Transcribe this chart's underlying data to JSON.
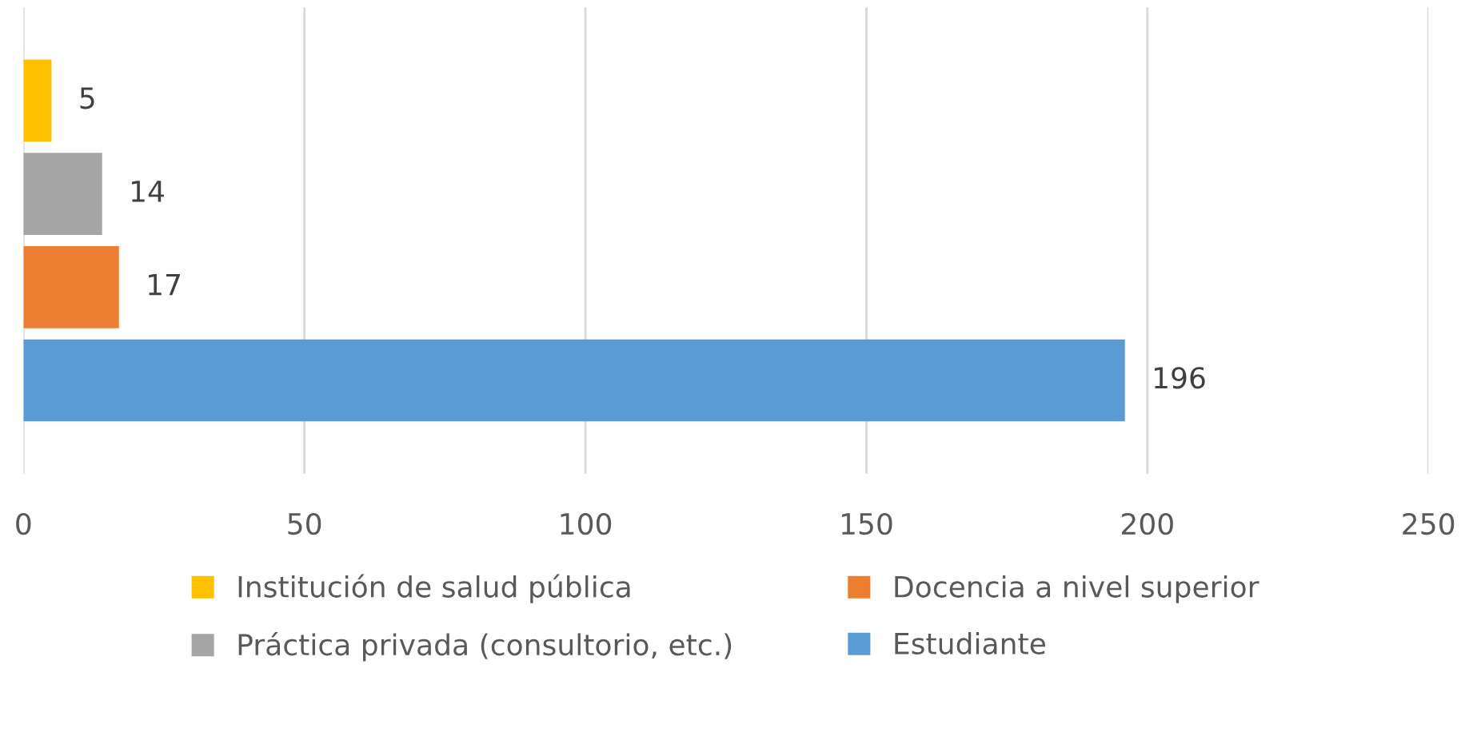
{
  "chart_data": {
    "type": "bar",
    "orientation": "horizontal",
    "categories": [
      null
    ],
    "series": [
      {
        "name": "Institución de salud pública",
        "color": "#ffc000",
        "values": [
          5
        ]
      },
      {
        "name": "Práctica privada (consultorio, etc.)",
        "color": "#a5a5a5",
        "values": [
          14
        ]
      },
      {
        "name": "Docencia a nivel superior",
        "color": "#ed7d31",
        "values": [
          17
        ]
      },
      {
        "name": "Estudiante",
        "color": "#5b9bd5",
        "values": [
          196
        ]
      }
    ],
    "xlim": [
      0,
      250
    ],
    "xticks": [
      0,
      50,
      100,
      150,
      200,
      250
    ],
    "grid": "x",
    "legend": "bottom",
    "data_labels": true,
    "tick_labels": "x"
  }
}
